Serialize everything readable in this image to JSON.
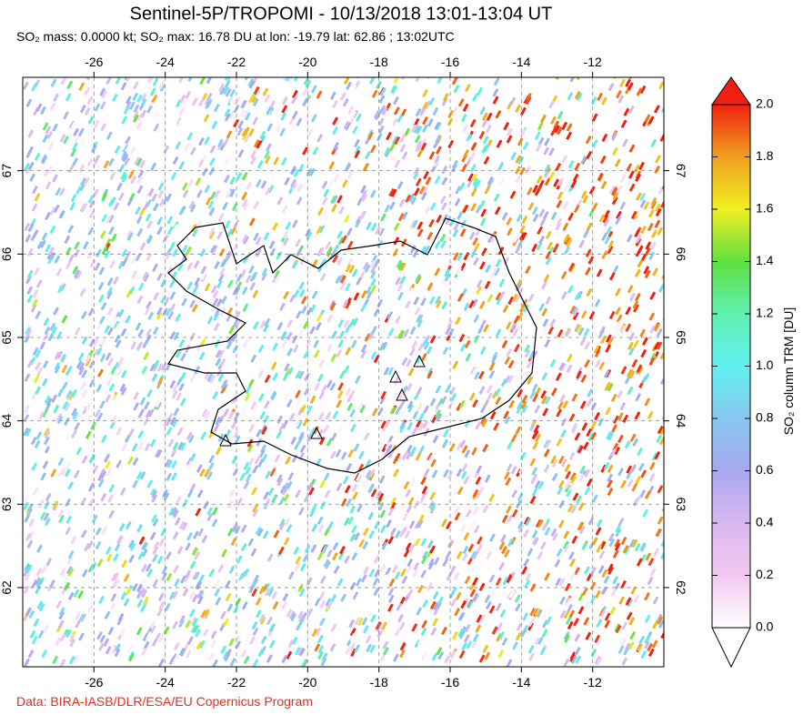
{
  "chart_data": {
    "type": "map",
    "title": "Sentinel-5P/TROPOMI - 10/13/2018 13:01-13:04 UT",
    "subtitle": "SO₂ mass: 0.0000 kt; SO₂ max: 16.78 DU at lon: -19.79 lat: 62.86 ; 13:02UTC",
    "xlim": [
      -28,
      -10
    ],
    "xticks": [
      -26,
      -24,
      -22,
      -20,
      -18,
      -16,
      -14,
      -12
    ],
    "ylim": [
      61.05,
      68.12
    ],
    "yticks": [
      62,
      63,
      64,
      65,
      66,
      67
    ],
    "grid": true,
    "colorbar": {
      "label": "SO₂ column TRM [DU]",
      "lim": [
        0,
        2
      ],
      "ticks": [
        {
          "value": 0,
          "label": "0.0"
        },
        {
          "value": 0.2,
          "label": "0.2"
        },
        {
          "value": 0.4,
          "label": "0.4"
        },
        {
          "value": 0.6,
          "label": "0.6"
        },
        {
          "value": 0.8,
          "label": "0.8"
        },
        {
          "value": 1,
          "label": "1.0"
        },
        {
          "value": 1.2,
          "label": "1.2"
        },
        {
          "value": 1.4,
          "label": "1.4"
        },
        {
          "value": 1.6,
          "label": "1.6"
        },
        {
          "value": 1.8,
          "label": "1.8"
        },
        {
          "value": 2,
          "label": "2.0"
        }
      ],
      "colors": [
        "#ffffff",
        "#f4c8f0",
        "#d8b8f0",
        "#a8a8f0",
        "#88c8f0",
        "#60f0f0",
        "#60f0b0",
        "#60e040",
        "#f0f020",
        "#f0a020",
        "#f02010"
      ]
    },
    "credit": "Data: BIRA-IASB/DLR/ESA/EU Copernicus Program"
  }
}
